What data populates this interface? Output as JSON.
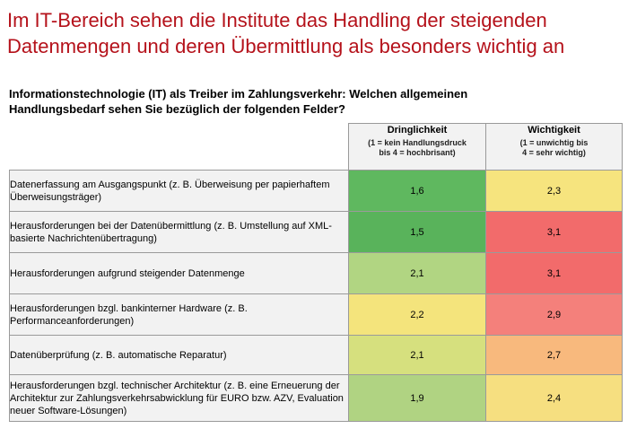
{
  "headline": {
    "line1": "Im IT-Bereich sehen die Institute das Handling der steigenden",
    "line2": "Datenmengen und deren Übermittlung als besonders wichtig an"
  },
  "question": {
    "line1": "Informationstechnologie (IT) als Treiber im Zahlungsverkehr: Welchen allgemeinen",
    "line2": "Handlungsbedarf sehen Sie bezüglich der folgenden Felder?"
  },
  "columns": {
    "dringlichkeit": {
      "title": "Dringlichkeit",
      "subtitle": "(1 = kein Handlungsdruck\nbis 4 = hochbrisant)"
    },
    "wichtigkeit": {
      "title": "Wichtigkeit",
      "subtitle": "(1 = unwichtig bis\n4 = sehr wichtig)"
    }
  },
  "rows": [
    {
      "label": "Datenerfassung am Ausgangspunkt (z. B. Überweisung per papierhaftem Überweisungsträger)",
      "dringlichkeit": "1,6",
      "wichtigkeit": "2,3",
      "dringlichkeit_color": "#5fb85f",
      "wichtigkeit_color": "#f6e47e"
    },
    {
      "label": "Herausforderungen bei der Datenübermittlung (z. B. Umstellung auf XML-basierte Nachrichtenübertragung)",
      "dringlichkeit": "1,5",
      "wichtigkeit": "3,1",
      "dringlichkeit_color": "#59b35b",
      "wichtigkeit_color": "#f26b6b"
    },
    {
      "label": "Herausforderungen aufgrund steigender Datenmenge",
      "dringlichkeit": "2,1",
      "wichtigkeit": "3,1",
      "dringlichkeit_color": "#b1d582",
      "wichtigkeit_color": "#f26b6b"
    },
    {
      "label": "Herausforderungen bzgl. bankinterner Hardware (z. B. Performanceanforderungen)",
      "dringlichkeit": "2,2",
      "wichtigkeit": "2,9",
      "dringlichkeit_color": "#f4e47c",
      "wichtigkeit_color": "#f4807b"
    },
    {
      "label": "Datenüberprüfung (z. B. automatische Reparatur)",
      "dringlichkeit": "2,1",
      "wichtigkeit": "2,7",
      "dringlichkeit_color": "#d6e07e",
      "wichtigkeit_color": "#f8b97d"
    },
    {
      "label": "Herausforderungen bzgl. technischer Architektur (z. B. eine Erneuerung der Architektur zur Zahlungsverkehrsabwicklung für EURO bzw. AZV, Evaluation neuer Software-Lösungen)",
      "dringlichkeit": "1,9",
      "wichtigkeit": "2,4",
      "dringlichkeit_color": "#b0d382",
      "wichtigkeit_color": "#f6df80"
    }
  ]
}
